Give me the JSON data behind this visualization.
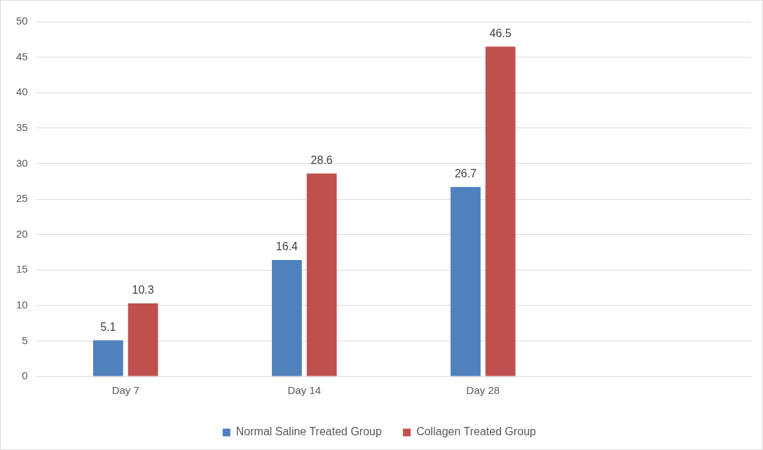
{
  "chart_data": {
    "type": "bar",
    "categories": [
      "Day 7",
      "Day 14",
      "Day 28",
      null
    ],
    "series": [
      {
        "name": "Normal Saline Treated Group",
        "color": "#4f81bd",
        "values": [
          5.1,
          16.4,
          26.7,
          null
        ]
      },
      {
        "name": "Collagen Treated Group",
        "color": "#c0504d",
        "values": [
          10.3,
          28.6,
          46.5,
          null
        ]
      }
    ],
    "ylim": [
      0,
      50
    ],
    "yticks": [
      0,
      5,
      10,
      15,
      20,
      25,
      30,
      35,
      40,
      45,
      50
    ],
    "grid": "y",
    "legend": "bottom",
    "data_labels": true
  }
}
